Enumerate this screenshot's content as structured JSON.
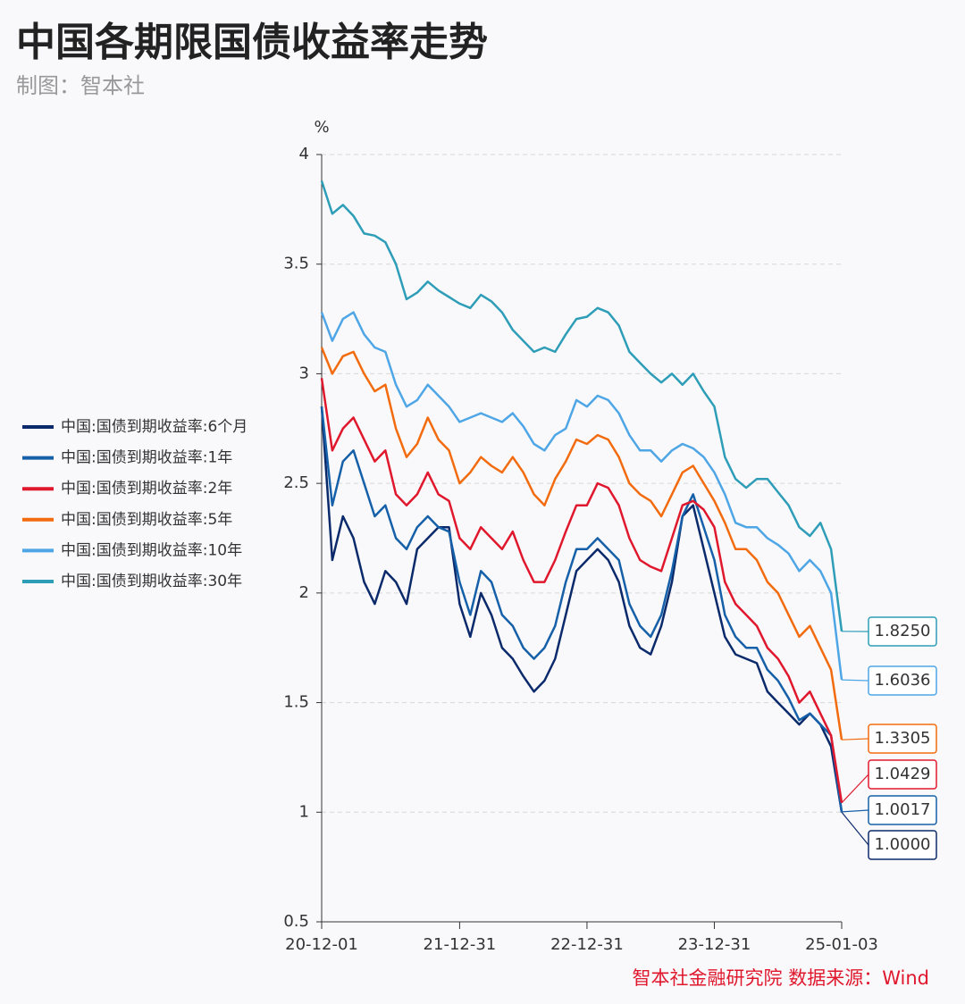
{
  "chart_data": {
    "type": "line",
    "title": "中国各期限国债收益率走势",
    "subtitle": "制图：智本社",
    "source": "智本社金融研究院  数据来源：Wind",
    "y_unit": "%",
    "legend_position": "left",
    "grid": true,
    "categories": [
      "20-12-01",
      null,
      null,
      null,
      null,
      null,
      null,
      null,
      null,
      null,
      null,
      null,
      null,
      "21-12-31",
      null,
      null,
      null,
      null,
      null,
      null,
      null,
      null,
      null,
      null,
      null,
      "22-12-31",
      null,
      null,
      null,
      null,
      null,
      null,
      null,
      null,
      null,
      null,
      null,
      "23-12-31",
      null,
      null,
      null,
      null,
      null,
      null,
      null,
      null,
      null,
      null,
      null,
      "25-01-03"
    ],
    "ylim": [
      0.5,
      4
    ],
    "yticks": [
      0.5,
      1,
      1.5,
      2,
      2.5,
      3,
      3.5,
      4
    ],
    "series": [
      {
        "name": "中国:国债到期收益率:6个月",
        "color": "#0b2a6b",
        "values": [
          2.85,
          2.15,
          2.35,
          2.25,
          2.05,
          1.95,
          2.1,
          2.05,
          1.95,
          2.2,
          2.25,
          2.3,
          2.3,
          1.95,
          1.8,
          2.0,
          1.9,
          1.75,
          1.7,
          1.62,
          1.55,
          1.6,
          1.7,
          1.9,
          2.1,
          2.15,
          2.2,
          2.15,
          2.05,
          1.85,
          1.75,
          1.72,
          1.85,
          2.05,
          2.35,
          2.4,
          2.2,
          2.0,
          1.8,
          1.72,
          1.7,
          1.68,
          1.55,
          1.5,
          1.45,
          1.4,
          1.45,
          1.4,
          1.3,
          1.0
        ],
        "value_labels": [
          null,
          null,
          null,
          null,
          null,
          null,
          null,
          null,
          null,
          null,
          null,
          null,
          null,
          null,
          null,
          null,
          null,
          null,
          null,
          null,
          null,
          null,
          null,
          null,
          null,
          null,
          null,
          null,
          null,
          null,
          null,
          null,
          null,
          null,
          null,
          null,
          null,
          null,
          null,
          null,
          null,
          null,
          null,
          null,
          null,
          null,
          null,
          null,
          null,
          "1.0000"
        ]
      },
      {
        "name": "中国:国债到期收益率:1年",
        "color": "#1560a8",
        "values": [
          2.85,
          2.4,
          2.6,
          2.65,
          2.5,
          2.35,
          2.4,
          2.25,
          2.2,
          2.3,
          2.35,
          2.3,
          2.28,
          2.05,
          1.9,
          2.1,
          2.05,
          1.9,
          1.85,
          1.75,
          1.7,
          1.75,
          1.85,
          2.05,
          2.2,
          2.2,
          2.25,
          2.2,
          2.15,
          1.95,
          1.85,
          1.8,
          1.9,
          2.1,
          2.35,
          2.45,
          2.3,
          2.15,
          1.9,
          1.8,
          1.75,
          1.75,
          1.65,
          1.6,
          1.52,
          1.42,
          1.45,
          1.4,
          1.35,
          1.0017
        ],
        "value_labels": [
          null,
          null,
          null,
          null,
          null,
          null,
          null,
          null,
          null,
          null,
          null,
          null,
          null,
          null,
          null,
          null,
          null,
          null,
          null,
          null,
          null,
          null,
          null,
          null,
          null,
          null,
          null,
          null,
          null,
          null,
          null,
          null,
          null,
          null,
          null,
          null,
          null,
          null,
          null,
          null,
          null,
          null,
          null,
          null,
          null,
          null,
          null,
          null,
          null,
          "1.0017"
        ]
      },
      {
        "name": "中国:国债到期收益率:2年",
        "color": "#e0182d",
        "values": [
          2.98,
          2.65,
          2.75,
          2.8,
          2.7,
          2.6,
          2.65,
          2.45,
          2.4,
          2.45,
          2.55,
          2.45,
          2.42,
          2.25,
          2.2,
          2.3,
          2.25,
          2.2,
          2.28,
          2.15,
          2.05,
          2.05,
          2.15,
          2.28,
          2.4,
          2.4,
          2.5,
          2.48,
          2.4,
          2.25,
          2.15,
          2.12,
          2.1,
          2.25,
          2.4,
          2.42,
          2.38,
          2.3,
          2.05,
          1.95,
          1.9,
          1.85,
          1.75,
          1.7,
          1.62,
          1.5,
          1.55,
          1.45,
          1.35,
          1.0429
        ],
        "value_labels": [
          null,
          null,
          null,
          null,
          null,
          null,
          null,
          null,
          null,
          null,
          null,
          null,
          null,
          null,
          null,
          null,
          null,
          null,
          null,
          null,
          null,
          null,
          null,
          null,
          null,
          null,
          null,
          null,
          null,
          null,
          null,
          null,
          null,
          null,
          null,
          null,
          null,
          null,
          null,
          null,
          null,
          null,
          null,
          null,
          null,
          null,
          null,
          null,
          null,
          "1.0429"
        ]
      },
      {
        "name": "中国:国债到期收益率:5年",
        "color": "#f26b0f",
        "values": [
          3.12,
          3.0,
          3.08,
          3.1,
          3.0,
          2.92,
          2.95,
          2.75,
          2.62,
          2.68,
          2.8,
          2.7,
          2.65,
          2.5,
          2.55,
          2.62,
          2.58,
          2.55,
          2.62,
          2.55,
          2.45,
          2.4,
          2.52,
          2.6,
          2.7,
          2.68,
          2.72,
          2.7,
          2.62,
          2.5,
          2.45,
          2.42,
          2.35,
          2.45,
          2.55,
          2.58,
          2.5,
          2.42,
          2.32,
          2.2,
          2.2,
          2.15,
          2.05,
          2.0,
          1.9,
          1.8,
          1.85,
          1.75,
          1.65,
          1.3305
        ],
        "value_labels": [
          null,
          null,
          null,
          null,
          null,
          null,
          null,
          null,
          null,
          null,
          null,
          null,
          null,
          null,
          null,
          null,
          null,
          null,
          null,
          null,
          null,
          null,
          null,
          null,
          null,
          null,
          null,
          null,
          null,
          null,
          null,
          null,
          null,
          null,
          null,
          null,
          null,
          null,
          null,
          null,
          null,
          null,
          null,
          null,
          null,
          null,
          null,
          null,
          null,
          "1.3305"
        ]
      },
      {
        "name": "中国:国债到期收益率:10年",
        "color": "#4ea6e6",
        "values": [
          3.28,
          3.15,
          3.25,
          3.28,
          3.18,
          3.12,
          3.1,
          2.95,
          2.85,
          2.88,
          2.95,
          2.9,
          2.85,
          2.78,
          2.8,
          2.82,
          2.8,
          2.78,
          2.82,
          2.76,
          2.68,
          2.65,
          2.72,
          2.75,
          2.88,
          2.85,
          2.9,
          2.88,
          2.82,
          2.72,
          2.65,
          2.65,
          2.6,
          2.65,
          2.68,
          2.66,
          2.62,
          2.55,
          2.45,
          2.32,
          2.3,
          2.3,
          2.25,
          2.22,
          2.18,
          2.1,
          2.15,
          2.1,
          2.0,
          1.6036
        ],
        "value_labels": [
          null,
          null,
          null,
          null,
          null,
          null,
          null,
          null,
          null,
          null,
          null,
          null,
          null,
          null,
          null,
          null,
          null,
          null,
          null,
          null,
          null,
          null,
          null,
          null,
          null,
          null,
          null,
          null,
          null,
          null,
          null,
          null,
          null,
          null,
          null,
          null,
          null,
          null,
          null,
          null,
          null,
          null,
          null,
          null,
          null,
          null,
          null,
          null,
          null,
          "1.6036"
        ]
      },
      {
        "name": "中国:国债到期收益率:30年",
        "color": "#2e9db8",
        "values": [
          3.88,
          3.73,
          3.77,
          3.72,
          3.64,
          3.63,
          3.6,
          3.5,
          3.34,
          3.37,
          3.42,
          3.38,
          3.35,
          3.32,
          3.3,
          3.36,
          3.33,
          3.28,
          3.2,
          3.15,
          3.1,
          3.12,
          3.1,
          3.18,
          3.25,
          3.26,
          3.3,
          3.28,
          3.22,
          3.1,
          3.05,
          3.0,
          2.96,
          3.0,
          2.95,
          3.0,
          2.92,
          2.85,
          2.62,
          2.52,
          2.48,
          2.52,
          2.52,
          2.46,
          2.4,
          2.3,
          2.26,
          2.32,
          2.2,
          1.825
        ],
        "value_labels": [
          null,
          null,
          null,
          null,
          null,
          null,
          null,
          null,
          null,
          null,
          null,
          null,
          null,
          null,
          null,
          null,
          null,
          null,
          null,
          null,
          null,
          null,
          null,
          null,
          null,
          null,
          null,
          null,
          null,
          null,
          null,
          null,
          null,
          null,
          null,
          null,
          null,
          null,
          null,
          null,
          null,
          null,
          null,
          null,
          null,
          null,
          null,
          null,
          null,
          "1.8250"
        ]
      }
    ]
  }
}
